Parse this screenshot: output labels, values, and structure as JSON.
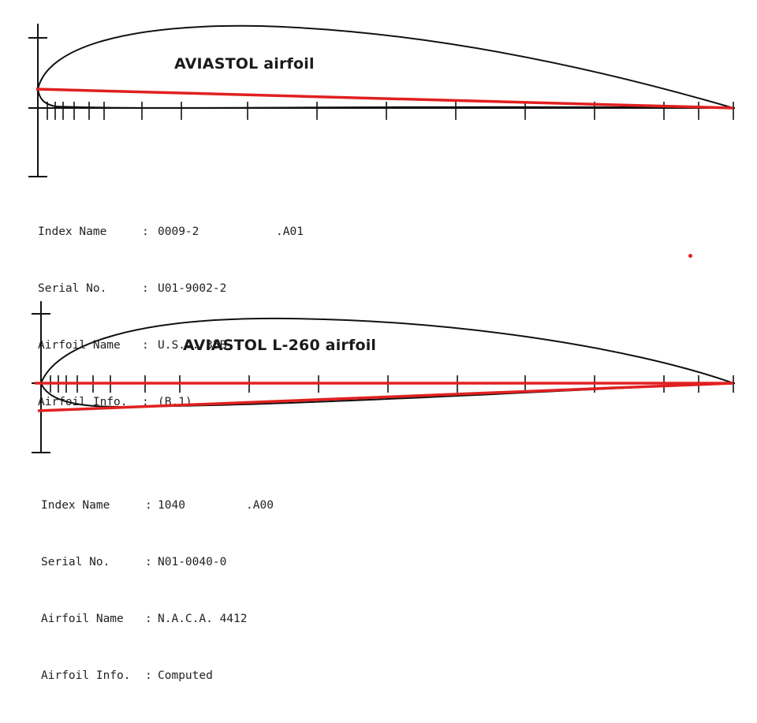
{
  "colors": {
    "outline": "#111111",
    "chord_line": "#e02020",
    "background": "#ffffff"
  },
  "airfoils": [
    {
      "title": "AVIASTOL airfoil",
      "info": [
        {
          "label": "Index Name",
          "value": "0009-2",
          "ext": ".A01"
        },
        {
          "label": "Serial No.",
          "value": "U01-9002-2",
          "ext": ""
        },
        {
          "label": "Airfoil Name",
          "value": "U.S.A. 35B",
          "ext": ""
        },
        {
          "label": "Airfoil Info.",
          "value": "(B.1)",
          "ext": ""
        }
      ]
    },
    {
      "title": "AVIASTOL L-260 airfoil",
      "info": [
        {
          "label": "Index Name",
          "value": "1040",
          "ext": ".A00"
        },
        {
          "label": "Serial No.",
          "value": "N01-0040-0",
          "ext": ""
        },
        {
          "label": "Airfoil Name",
          "value": "N.A.C.A. 4412",
          "ext": ""
        },
        {
          "label": "Airfoil Info.",
          "value": "Computed",
          "ext": ""
        }
      ]
    }
  ]
}
